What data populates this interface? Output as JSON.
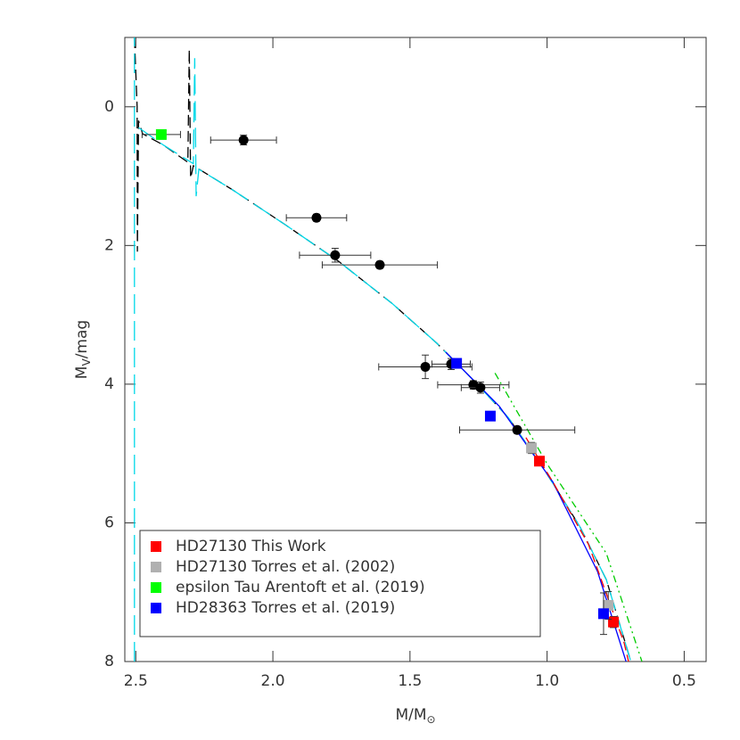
{
  "chart_data": {
    "type": "scatter",
    "xlabel": {
      "main": "M/M",
      "sub": "⊙"
    },
    "ylabel": {
      "main": "M",
      "sub": "V",
      "rest": "/mag"
    },
    "xlim": [
      2.54,
      0.42
    ],
    "ylim": [
      8.0,
      -1.0
    ],
    "xticks": [
      2.5,
      {
        "value": 2,
        "label": "2.0"
      },
      1.5,
      {
        "value": 1,
        "label": "1.0"
      },
      0.5
    ],
    "yticks": [
      0,
      2,
      4,
      6,
      8
    ],
    "lines": [
      {
        "color": "#000000",
        "dash": "12 6",
        "x": [
          2.505,
          2.495,
          2.494,
          2.49,
          2.475,
          2.4,
          2.31,
          2.305,
          2.3,
          2.29,
          2.15,
          1.955,
          1.76,
          1.564,
          1.402,
          1.272,
          1.142,
          1.012,
          0.881,
          0.784,
          0.696
        ],
        "y": [
          -1.0,
          0.0,
          2.09,
          0.2,
          0.39,
          0.55,
          0.8,
          -0.83,
          1.03,
          0.85,
          1.19,
          1.7,
          2.23,
          2.84,
          3.41,
          3.93,
          4.48,
          5.22,
          6.05,
          6.82,
          7.98
        ]
      },
      {
        "color": "#00d8e8",
        "dash": "22 8",
        "x": [
          2.505,
          2.505,
          null,
          2.49,
          2.4,
          2.29,
          2.285,
          2.28,
          2.27,
          2.15,
          1.955,
          1.76,
          1.564,
          1.402,
          1.272,
          1.142,
          1.012,
          0.881,
          0.784,
          0.696
        ],
        "y": [
          8.0,
          -1.0,
          null,
          0.3,
          0.55,
          0.82,
          -0.7,
          1.29,
          0.9,
          1.19,
          1.7,
          2.23,
          2.84,
          3.41,
          3.93,
          4.48,
          5.22,
          6.05,
          6.82,
          7.98
        ]
      },
      {
        "color": "#0000ff",
        "dash": "none",
        "x": [
          1.369,
          1.174,
          0.979,
          0.816,
          0.712
        ],
        "y": [
          3.54,
          4.32,
          5.41,
          6.7,
          8.0
        ]
      },
      {
        "color": "#ff0000",
        "dash": "10 5",
        "x": [
          1.077,
          0.979,
          0.849,
          0.719,
          0.703
        ],
        "y": [
          4.77,
          5.41,
          6.31,
          7.73,
          8.0
        ]
      },
      {
        "color": "#00cc00",
        "dash": "8 4 2 4 2 4",
        "x": [
          1.19,
          1.0,
          0.784,
          0.654
        ],
        "y": [
          3.84,
          5.15,
          6.44,
          8.0
        ]
      }
    ],
    "series": [
      {
        "color": "#000000",
        "marker": "circle",
        "x": [
          2.107,
          1.841,
          1.773,
          1.61,
          1.444,
          1.35,
          1.269,
          1.243,
          1.109
        ],
        "y": [
          0.48,
          1.6,
          2.14,
          2.28,
          3.75,
          3.71,
          4.01,
          4.05,
          4.66
        ],
        "xerr": [
          0.12,
          0.11,
          0.13,
          0.21,
          0.17,
          0.07,
          0.13,
          0.07,
          0.21
        ],
        "yerr": [
          0.07,
          0.05,
          0.1,
          0.05,
          0.17,
          0.08,
          0.06,
          0.08,
          0.05
        ]
      },
      {
        "name": "HD27130 This Work",
        "color": "#ff0000",
        "marker": "square",
        "x": [
          1.028,
          0.758
        ],
        "y": [
          5.11,
          7.43
        ],
        "yerr": [
          0.05,
          0.08
        ]
      },
      {
        "name": "HD27130 Torres et al. (2002)",
        "color": "#b0b0b0",
        "marker": "square",
        "x": [
          1.057,
          0.777
        ],
        "y": [
          4.92,
          7.19
        ],
        "yerr": [
          0.08,
          0.2
        ]
      },
      {
        "name": "epsilon Tau Arentoft et al. (2019)",
        "color": "#00ff00",
        "marker": "square",
        "x": [
          2.407
        ],
        "y": [
          0.4
        ],
        "xerr": [
          0.07
        ]
      },
      {
        "name": "HD28363 Torres et al. (2019)",
        "color": "#0000ff",
        "marker": "square",
        "x": [
          1.33,
          1.207,
          0.794
        ],
        "y": [
          3.7,
          4.46,
          7.31
        ],
        "yerr": [
          0.05,
          0.05,
          0.3
        ]
      }
    ]
  }
}
